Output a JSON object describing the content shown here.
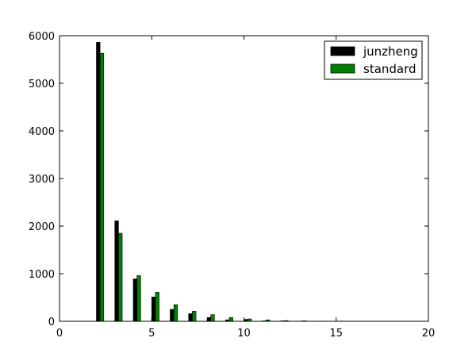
{
  "chart_data": {
    "type": "bar",
    "title": "",
    "xlabel": "",
    "ylabel": "",
    "xlim": [
      0,
      20
    ],
    "ylim": [
      0,
      6000
    ],
    "x_ticks": [
      0,
      5,
      10,
      15,
      20
    ],
    "x_tick_labels": [
      "0",
      "5",
      "10",
      "15",
      "20"
    ],
    "y_ticks": [
      0,
      1000,
      2000,
      3000,
      4000,
      5000,
      6000
    ],
    "y_tick_labels": [
      "0",
      "1000",
      "2000",
      "3000",
      "4000",
      "5000",
      "6000"
    ],
    "grid": false,
    "legend_position": "top-right",
    "x": [
      1,
      2,
      3,
      4,
      5,
      6,
      7,
      8,
      9,
      10,
      11,
      12,
      13,
      14,
      15,
      16,
      17,
      18,
      19
    ],
    "series": [
      {
        "name": "junzheng",
        "color": "#000000",
        "values": [
          0,
          5860,
          2110,
          890,
          510,
          250,
          160,
          80,
          30,
          40,
          10,
          10,
          5,
          3,
          3,
          2,
          1,
          1,
          1
        ]
      },
      {
        "name": "standard",
        "color": "#008000",
        "values": [
          0,
          5630,
          1850,
          960,
          610,
          350,
          210,
          140,
          80,
          50,
          30,
          15,
          10,
          5,
          5,
          2,
          1,
          1,
          1
        ]
      }
    ]
  }
}
